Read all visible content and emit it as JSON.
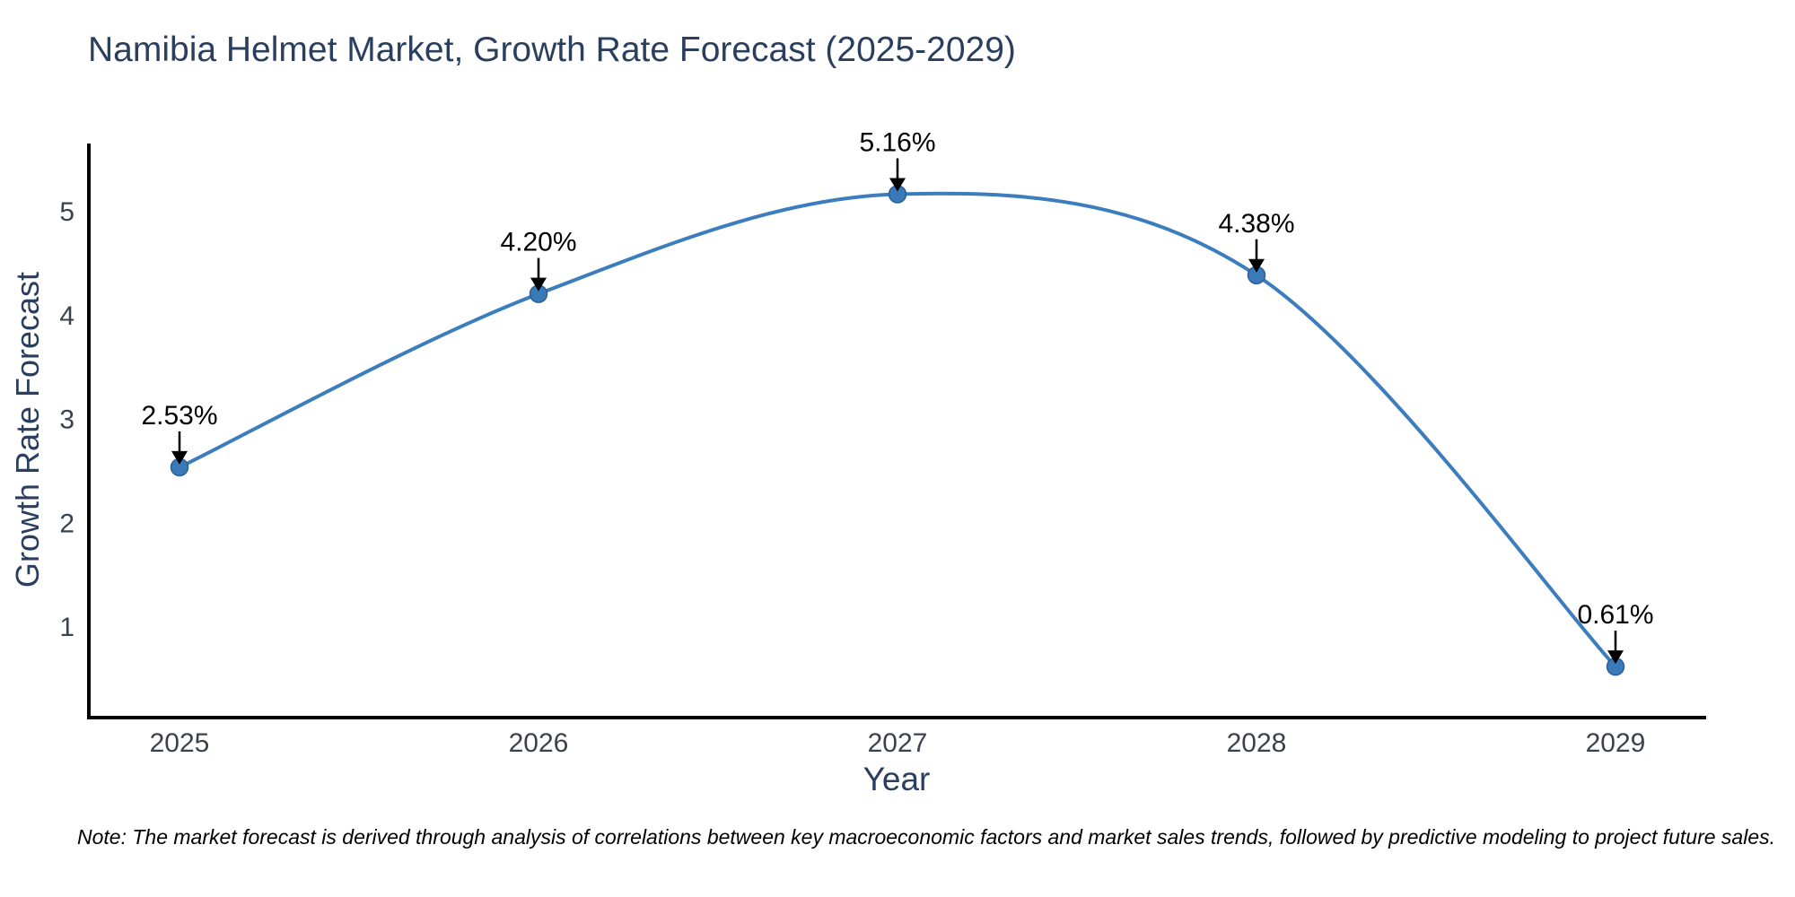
{
  "page": {
    "background": "#ffffff"
  },
  "chart_data": {
    "type": "line",
    "title": "Namibia Helmet Market, Growth Rate Forecast (2025-2029)",
    "xlabel": "Year",
    "ylabel": "Growth Rate Forecast",
    "categories": [
      "2025",
      "2026",
      "2027",
      "2028",
      "2029"
    ],
    "values": [
      2.53,
      4.2,
      5.16,
      4.38,
      0.61
    ],
    "point_labels": [
      "2.53%",
      "4.20%",
      "5.16%",
      "4.38%",
      "0.61%"
    ],
    "yticks": [
      1,
      2,
      3,
      4,
      5
    ],
    "ylim": [
      0.1,
      5.7
    ],
    "line_shape": "spline",
    "grid": false,
    "legend_position": "none",
    "colors": {
      "line": "#3c7dbe",
      "marker_fill": "#3b7ab9",
      "marker_edge": "#2b5f96",
      "annotation_text": "#000000",
      "arrow": "#000000",
      "axis_line": "#000000",
      "title_text": "#2a3f5f",
      "tick_text": "#39434f"
    },
    "note": "Note: The market forecast is derived through analysis of correlations between key macroeconomic factors and market sales trends, followed by predictive modeling to project future sales."
  }
}
